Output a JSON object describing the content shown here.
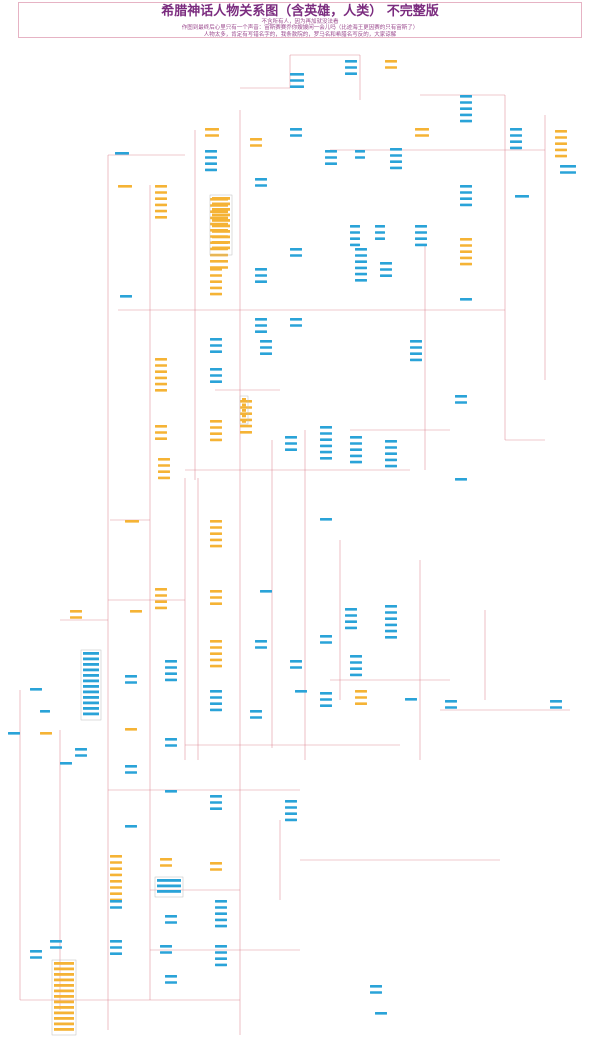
{
  "title": "希腊神话人物关系图（含英雄，人类） 不完整版",
  "notes": [
    "不含所有人，因为再加就没法看",
    "作图到最终后心里只有一个声音：宙斯赛赛乔你嫂嫂闲一会儿吗（比迹海王更因赛的只有宙斯了）",
    "人物太多，肯定有写错名字的，我条款院的，罗马名和希腊名写反的，大家谅解"
  ],
  "colors": {
    "title": "#7b2c7f",
    "note": "#9b4a8e",
    "frame": "#e6b3c4",
    "blue_node": "#2aa3d8",
    "orange_node": "#f5b335",
    "link": "#d9808b"
  }
}
